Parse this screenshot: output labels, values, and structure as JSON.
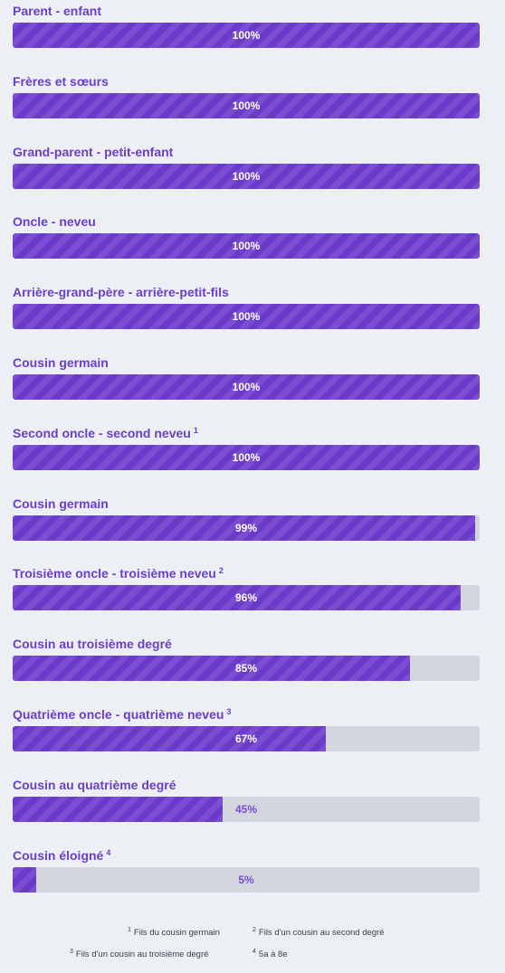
{
  "relations": [
    {
      "label": "Parent - enfant",
      "note": "",
      "percent": 100,
      "percent_text": "100%"
    },
    {
      "label": "Frères et sœurs",
      "note": "",
      "percent": 100,
      "percent_text": "100%"
    },
    {
      "label": "Grand-parent - petit-enfant",
      "note": "",
      "percent": 100,
      "percent_text": "100%"
    },
    {
      "label": "Oncle - neveu",
      "note": "",
      "percent": 100,
      "percent_text": "100%"
    },
    {
      "label": "Arrière-grand-père - arrière-petit-fils",
      "note": "",
      "percent": 100,
      "percent_text": "100%"
    },
    {
      "label": "Cousin germain",
      "note": "",
      "percent": 100,
      "percent_text": "100%"
    },
    {
      "label": "Second oncle - second neveu",
      "note": "1",
      "percent": 100,
      "percent_text": "100%"
    },
    {
      "label": "Cousin germain",
      "note": "",
      "percent": 99,
      "percent_text": "99%"
    },
    {
      "label": "Troisième oncle - troisième neveu",
      "note": "2",
      "percent": 96,
      "percent_text": "96%"
    },
    {
      "label": "Cousin au troisième degré",
      "note": "",
      "percent": 85,
      "percent_text": "85%"
    },
    {
      "label": "Quatrième oncle - quatrième neveu",
      "note": "3",
      "percent": 67,
      "percent_text": "67%"
    },
    {
      "label": "Cousin au quatrième degré",
      "note": "",
      "percent": 45,
      "percent_text": "45%"
    },
    {
      "label": "Cousin éloigné",
      "note": "4",
      "percent": 5,
      "percent_text": "5%"
    }
  ],
  "footnotes": [
    {
      "num": "1",
      "text": "Fils du cousin germain"
    },
    {
      "num": "2",
      "text": "Fils d'un cousin au second degré"
    },
    {
      "num": "3",
      "text": "Fils d'un cousin au troisième degré"
    },
    {
      "num": "4",
      "text": "5a à 8e"
    }
  ],
  "colors": {
    "bar_fill": "#6a3acb",
    "bar_track": "#d3d5df",
    "label_text": "#6b3fc9",
    "background": "#eceff4"
  }
}
